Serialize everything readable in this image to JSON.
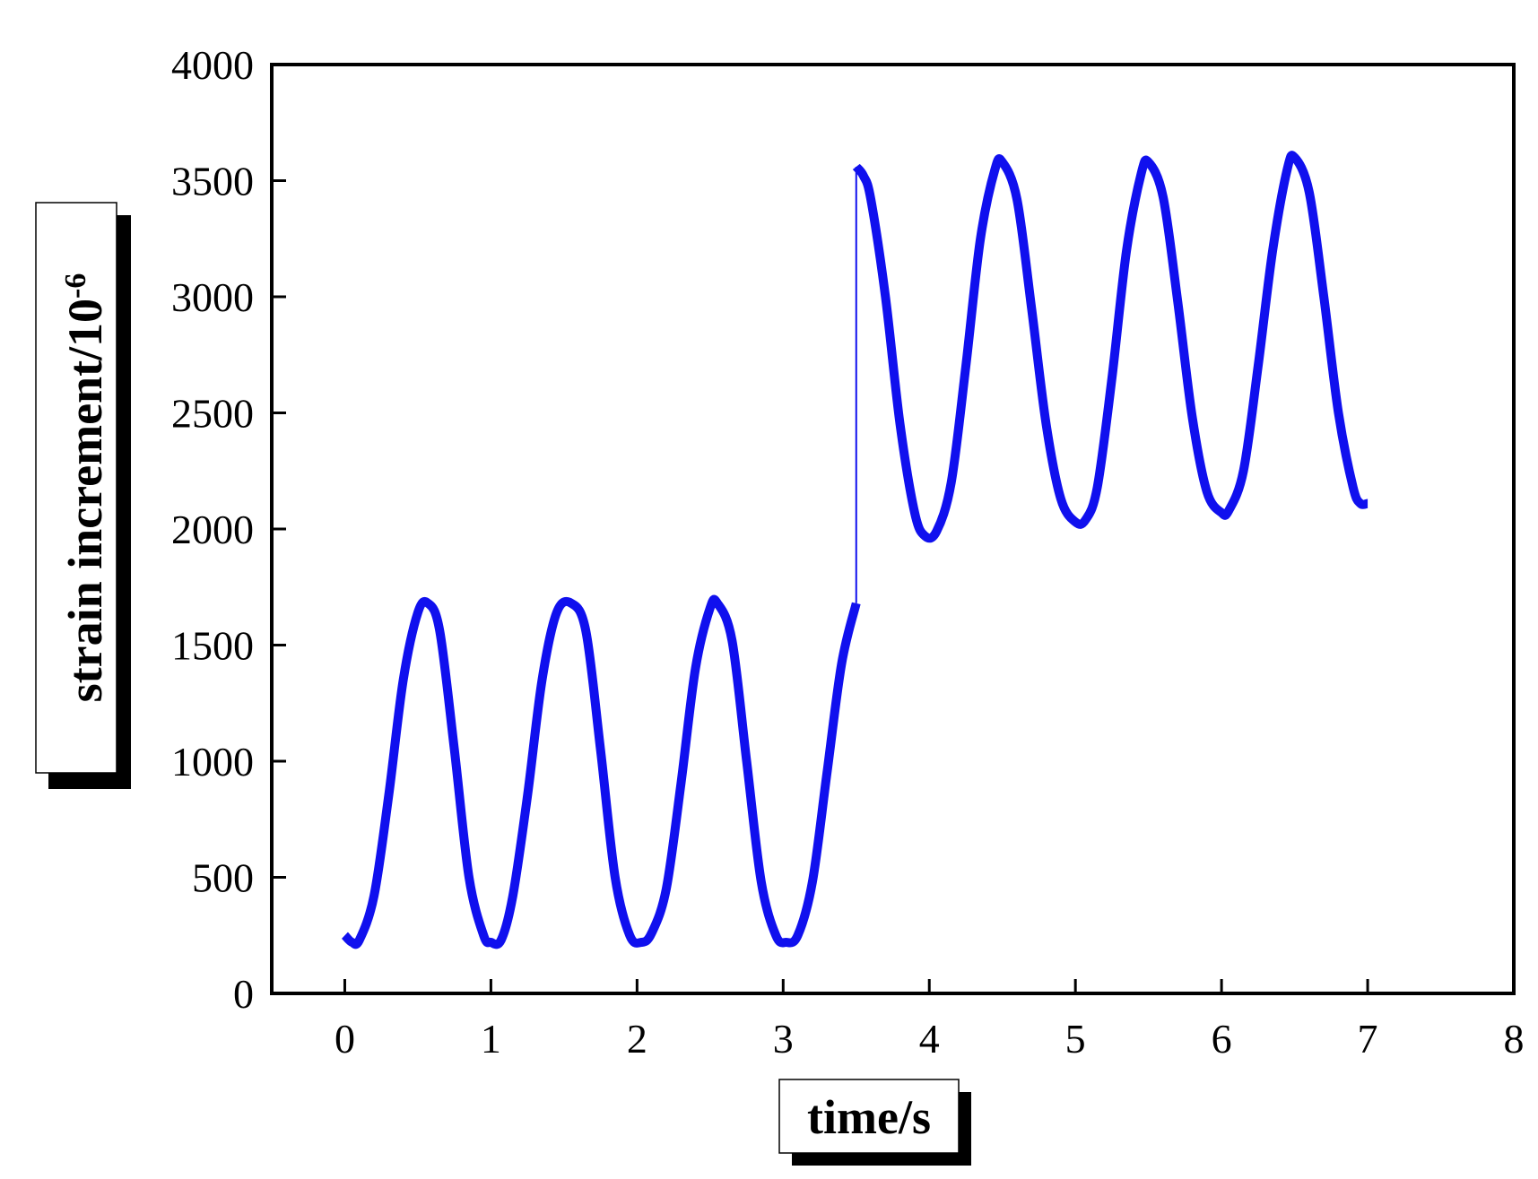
{
  "chart_data": {
    "type": "line",
    "xlabel": "time/s",
    "ylabel": {
      "base": "strain increment/10",
      "superscript": "-6"
    },
    "xlim": [
      -0.5,
      8
    ],
    "ylim": [
      0,
      4000
    ],
    "x_ticks": [
      "0",
      "1",
      "2",
      "3",
      "4",
      "5",
      "6",
      "7",
      "8"
    ],
    "y_ticks": [
      "0",
      "500",
      "1000",
      "1500",
      "2000",
      "2500",
      "3000",
      "3500",
      "4000"
    ],
    "grid": false,
    "legend": "none",
    "colors": {
      "series": "#1010ee",
      "axis": "#000000"
    },
    "series": [
      {
        "x": [
          0,
          0.05,
          0.1,
          0.2,
          0.3,
          0.4,
          0.5,
          0.57,
          0.65,
          0.75,
          0.85,
          0.95,
          1.0,
          1.07,
          1.15,
          1.25,
          1.35,
          1.45,
          1.55,
          1.65,
          1.75,
          1.85,
          1.95,
          2.03,
          2.1,
          2.2,
          2.3,
          2.4,
          2.5,
          2.55,
          2.65,
          2.75,
          2.85,
          2.95,
          3.02,
          3.1,
          3.2,
          3.3,
          3.4,
          3.5,
          3.5,
          3.55,
          3.6,
          3.7,
          3.8,
          3.9,
          3.97,
          4.05,
          4.15,
          4.25,
          4.35,
          4.45,
          4.5,
          4.6,
          4.7,
          4.8,
          4.9,
          5.0,
          5.07,
          5.15,
          5.25,
          5.35,
          5.45,
          5.5,
          5.6,
          5.7,
          5.8,
          5.9,
          6.0,
          6.05,
          6.15,
          6.25,
          6.35,
          6.45,
          6.5,
          6.6,
          6.7,
          6.8,
          6.9,
          6.95,
          7.0
        ],
        "y": [
          250,
          220,
          230,
          420,
          850,
          1350,
          1640,
          1680,
          1560,
          1050,
          500,
          250,
          220,
          230,
          420,
          850,
          1350,
          1640,
          1680,
          1560,
          1050,
          500,
          250,
          220,
          260,
          450,
          900,
          1400,
          1660,
          1680,
          1520,
          1000,
          480,
          250,
          220,
          250,
          480,
          950,
          1420,
          1680,
          3560,
          3520,
          3420,
          3000,
          2450,
          2070,
          1970,
          1990,
          2200,
          2700,
          3250,
          3550,
          3580,
          3420,
          2950,
          2450,
          2130,
          2030,
          2040,
          2180,
          2650,
          3200,
          3530,
          3580,
          3430,
          2980,
          2480,
          2160,
          2070,
          2080,
          2250,
          2700,
          3200,
          3550,
          3600,
          3450,
          3000,
          2500,
          2180,
          2110,
          2110
        ]
      }
    ]
  }
}
